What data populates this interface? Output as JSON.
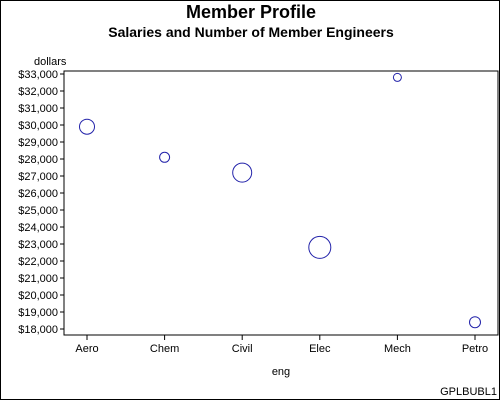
{
  "chart_data": {
    "type": "scatter",
    "title": "Member Profile",
    "subtitle": "Salaries and Number of Member Engineers",
    "xlabel": "eng",
    "ylabel": "dollars",
    "categories": [
      "Aero",
      "Chem",
      "Civil",
      "Elec",
      "Mech",
      "Petro"
    ],
    "series": [
      {
        "values": [
          29900,
          28100,
          27200,
          22800,
          32800,
          18400
        ],
        "bubble_size": [
          15,
          10,
          19,
          22,
          8,
          11
        ]
      }
    ],
    "ylim": [
      18000,
      33000
    ],
    "ytick_step": 1000,
    "yticks": [
      "$18,000",
      "$19,000",
      "$20,000",
      "$21,000",
      "$22,000",
      "$23,000",
      "$24,000",
      "$25,000",
      "$26,000",
      "$27,000",
      "$28,000",
      "$29,000",
      "$30,000",
      "$31,000",
      "$32,000",
      "$33,000"
    ],
    "grid": false,
    "bubble_color": "#2323aa",
    "footnote": "GPLBUBL1"
  }
}
